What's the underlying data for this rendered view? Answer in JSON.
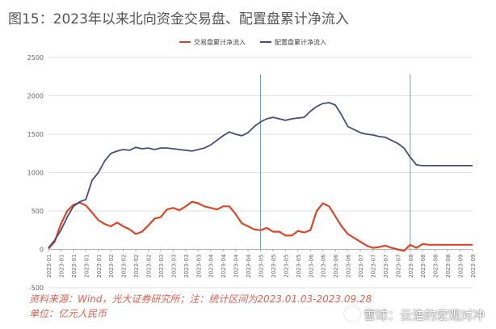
{
  "title": "图15：2023年以来北向资金交易盘、配置盘累计净流入",
  "source": "资料来源：Wind，光大证券研究所；注：统计区间为2023.01.03-2023.09.28",
  "unit": "单位：亿元人民币",
  "watermark": "雪球：云浩的宏观对冲",
  "colors": {
    "trading": "#d9472b",
    "allocation": "#4a4a7c",
    "refline": "#6a9fd8",
    "grid": "#e0e0e0",
    "axis": "#b0b0b0",
    "ticktext": "#666666"
  },
  "chart_data": {
    "type": "line",
    "ylim": [
      -500,
      2500
    ],
    "yticks": [
      -500,
      0,
      500,
      1000,
      1500,
      2000,
      2500
    ],
    "xlabels": [
      "2023-01",
      "2023-01",
      "2023-01",
      "2023-01",
      "2023-01",
      "2023-02",
      "2023-02",
      "2023-02",
      "2023-02",
      "2023-03",
      "2023-03",
      "2023-03",
      "2023-03",
      "2023-04",
      "2023-04",
      "2023-04",
      "2023-04",
      "2023-05",
      "2023-05",
      "2023-05",
      "2023-05",
      "2023-06",
      "2023-06",
      "2023-06",
      "2023-06",
      "2023-07",
      "2023-07",
      "2023-07",
      "2023-07",
      "2023-08",
      "2023-08",
      "2023-08",
      "2023-08",
      "2023-09",
      "2023-09"
    ],
    "reference_lines_at_label_index": [
      17,
      29
    ],
    "series": [
      {
        "name": "交易盘累计净流入",
        "color_key": "trading",
        "x": [
          0,
          0.5,
          1,
          1.5,
          2,
          2.5,
          3,
          3.5,
          4,
          4.5,
          5,
          5.5,
          6,
          6.5,
          7,
          7.5,
          8,
          8.5,
          9,
          9.5,
          10,
          10.5,
          11,
          11.5,
          12,
          12.5,
          13,
          13.5,
          14,
          14.5,
          15,
          15.5,
          16,
          16.5,
          17,
          17.5,
          18,
          18.5,
          19,
          19.5,
          20,
          20.5,
          21,
          21.5,
          22,
          22.5,
          23,
          23.5,
          24,
          24.5,
          25,
          25.5,
          26,
          26.5,
          27,
          27.5,
          28,
          28.5,
          29,
          29.5,
          30,
          30.5,
          31,
          31.5,
          32,
          32.5,
          33,
          33.5,
          34
        ],
        "values": [
          10,
          100,
          330,
          500,
          580,
          610,
          570,
          480,
          380,
          330,
          300,
          350,
          300,
          260,
          200,
          230,
          310,
          400,
          420,
          520,
          540,
          510,
          560,
          620,
          600,
          560,
          540,
          520,
          560,
          560,
          460,
          340,
          300,
          260,
          250,
          280,
          230,
          230,
          180,
          180,
          240,
          220,
          250,
          500,
          600,
          560,
          430,
          300,
          200,
          150,
          100,
          50,
          20,
          30,
          50,
          20,
          0,
          -20,
          60,
          20,
          70,
          60,
          60,
          60,
          60,
          60,
          60,
          60,
          60
        ]
      },
      {
        "name": "配置盘累计净流入",
        "color_key": "allocation",
        "x": [
          0,
          0.5,
          1,
          1.5,
          2,
          2.5,
          3,
          3.5,
          4,
          4.5,
          5,
          5.5,
          6,
          6.5,
          7,
          7.5,
          8,
          8.5,
          9,
          9.5,
          10,
          10.5,
          11,
          11.5,
          12,
          12.5,
          13,
          13.5,
          14,
          14.5,
          15,
          15.5,
          16,
          16.5,
          17,
          17.5,
          18,
          18.5,
          19,
          19.5,
          20,
          20.5,
          21,
          21.5,
          22,
          22.5,
          23,
          23.5,
          24,
          24.5,
          25,
          25.5,
          26,
          26.5,
          27,
          27.5,
          28,
          28.5,
          29,
          29.5,
          30,
          30.5,
          31,
          31.5,
          32,
          32.5,
          33,
          33.5,
          34
        ],
        "values": [
          20,
          120,
          250,
          420,
          560,
          620,
          650,
          900,
          1000,
          1150,
          1250,
          1280,
          1300,
          1290,
          1330,
          1310,
          1320,
          1300,
          1320,
          1320,
          1310,
          1300,
          1290,
          1280,
          1300,
          1320,
          1360,
          1420,
          1480,
          1530,
          1500,
          1480,
          1520,
          1600,
          1660,
          1700,
          1720,
          1700,
          1680,
          1700,
          1710,
          1720,
          1800,
          1860,
          1900,
          1910,
          1880,
          1750,
          1600,
          1560,
          1520,
          1500,
          1490,
          1470,
          1460,
          1420,
          1380,
          1320,
          1200,
          1100,
          1090,
          1090,
          1090,
          1090,
          1090,
          1090,
          1090,
          1090,
          1090
        ]
      }
    ]
  }
}
